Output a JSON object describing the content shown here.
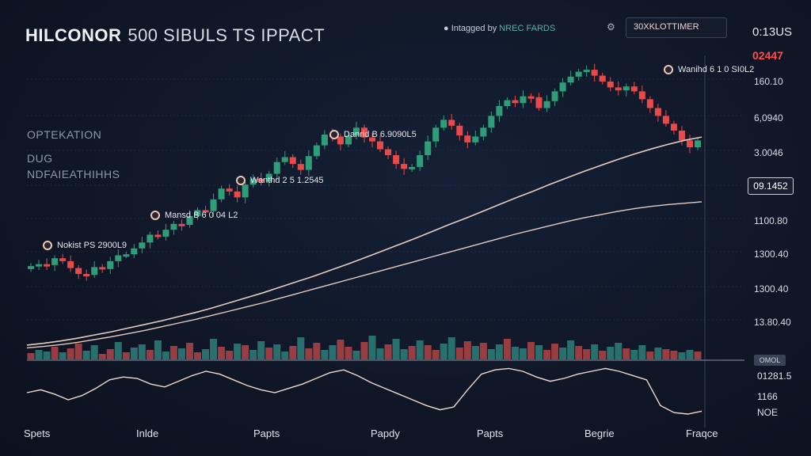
{
  "header": {
    "title_main": "HILCONOR",
    "title_rest": "500 SIBULS TS IPPACT",
    "brand_prefix": "Intagged by",
    "brand_name": "NREC FARDS",
    "timer_label": "30XKLOTTIMER",
    "clock": "0:13US",
    "change": "02447"
  },
  "side_labels": [
    "OPTEKATION",
    "DUG",
    "NDFAIEATHIHHS"
  ],
  "annotations": [
    {
      "text": "Nokist PS 2900L9"
    },
    {
      "text": "Mansd B 6 0 04 L2"
    },
    {
      "text": "Wanthd 2 5 1.2545"
    },
    {
      "text": "Danrid B 6.9090L5"
    },
    {
      "text": "Wanihd 6 1 0 SI0L2"
    }
  ],
  "price_box": "09.1452",
  "oscillator_labels": {
    "tag": "OMOL",
    "v1": "01281.5",
    "v2": "1166",
    "v3": "NOE"
  },
  "chart_data": {
    "type": "candlestick",
    "title": "",
    "x_tick_labels": [
      "Spets",
      "Inlde",
      "Papts",
      "Papdy",
      "Papts",
      "Begrie",
      "Fraqce"
    ],
    "y_tick_labels": [
      "160.10",
      "6,0940",
      "3.0046",
      "1100.80",
      "1300.40",
      "1300.40",
      "13.80.40"
    ],
    "colors": {
      "up": "#2f9e78",
      "down": "#e84a4a",
      "ma": "#f1d6c7",
      "grid": "#2a3346"
    },
    "close_path": [
      74,
      78,
      76,
      90,
      84,
      70,
      58,
      56,
      72,
      68,
      84,
      96,
      98,
      110,
      122,
      138,
      134,
      148,
      160,
      158,
      176,
      188,
      186,
      210,
      232,
      226,
      214,
      240,
      252,
      246,
      262,
      286,
      296,
      282,
      270,
      298,
      320,
      342,
      338,
      322,
      340,
      356,
      336,
      328,
      312,
      300,
      282,
      272,
      276,
      300,
      328,
      356,
      372,
      360,
      340,
      326,
      338,
      356,
      380,
      400,
      412,
      406,
      420,
      418,
      396,
      410,
      430,
      448,
      460,
      470,
      474,
      462,
      450,
      438,
      432,
      440,
      430,
      414,
      396,
      380,
      364,
      350,
      330,
      316,
      330
    ],
    "ma_fast": [
      14,
      18,
      23,
      29,
      36,
      43,
      51,
      59,
      67,
      76,
      85,
      95,
      106,
      117,
      128,
      140,
      152,
      164,
      177,
      190,
      204,
      218,
      232,
      246,
      261,
      276,
      290,
      305,
      320,
      335,
      349,
      364,
      378,
      392,
      405,
      418,
      430,
      441,
      451,
      460,
      467
    ],
    "ma_slow": [
      8,
      11,
      15,
      20,
      26,
      32,
      39,
      46,
      54,
      62,
      70,
      79,
      88,
      97,
      106,
      116,
      126,
      136,
      146,
      156,
      166,
      176,
      186,
      196,
      206,
      216,
      226,
      236,
      246,
      256,
      265,
      274,
      283,
      291,
      298,
      305,
      311,
      316,
      320,
      323,
      326
    ],
    "volume": [
      8,
      12,
      10,
      16,
      9,
      14,
      20,
      11,
      18,
      7,
      13,
      22,
      9,
      15,
      19,
      12,
      24,
      10,
      17,
      14,
      21,
      9,
      13,
      26,
      16,
      11,
      20,
      18,
      12,
      23,
      15,
      19,
      10,
      17,
      28,
      14,
      21,
      12,
      18,
      25,
      16,
      11,
      22,
      30,
      14,
      19,
      26,
      13,
      17,
      24,
      18,
      12,
      20,
      28,
      15,
      23,
      17,
      21,
      13,
      19,
      26,
      16,
      14,
      22,
      18,
      12,
      20,
      15,
      24,
      17,
      13,
      19,
      11,
      16,
      21,
      14,
      12,
      18,
      10,
      15,
      13,
      11,
      9,
      12,
      10
    ],
    "oscillator": [
      40,
      44,
      38,
      30,
      36,
      46,
      58,
      62,
      60,
      52,
      48,
      56,
      64,
      70,
      66,
      58,
      50,
      44,
      40,
      46,
      52,
      60,
      68,
      72,
      64,
      54,
      46,
      38,
      30,
      22,
      16,
      20,
      44,
      66,
      72,
      74,
      70,
      62,
      56,
      60,
      66,
      70,
      74,
      70,
      64,
      58,
      22,
      12,
      10,
      14
    ]
  }
}
